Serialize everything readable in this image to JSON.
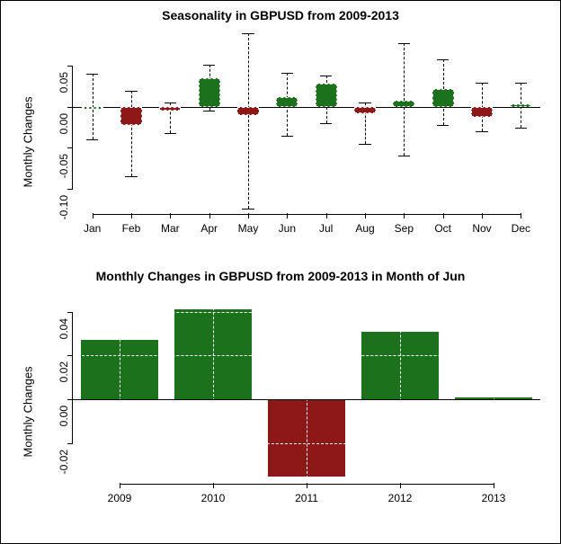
{
  "top_chart": {
    "type": "boxplot",
    "title": "Seasonality in GBPUSD from 2009-2013",
    "title_fontsize": 14,
    "ylabel": "Monthly Changes",
    "label_fontsize": 13,
    "categories": [
      "Jan",
      "Feb",
      "Mar",
      "Apr",
      "May",
      "Jun",
      "Jul",
      "Aug",
      "Sep",
      "Oct",
      "Nov",
      "Dec"
    ],
    "ylim": [
      -0.13,
      0.09
    ],
    "yticks": [
      -0.1,
      -0.05,
      0.0,
      0.05
    ],
    "ytick_labels": [
      "-0.10",
      "-0.05",
      "0.00",
      "0.05"
    ],
    "background_color": "#ffffff",
    "positive_color": "#1c721c",
    "negative_color": "#8c1818",
    "whisker_color": "#000000",
    "boxes": [
      {
        "open": 0.0,
        "close": 0.0,
        "low": -0.04,
        "high": 0.04,
        "color": "#1c721c"
      },
      {
        "open": 0.0,
        "close": -0.022,
        "low": -0.085,
        "high": 0.02,
        "color": "#8c1818"
      },
      {
        "open": 0.0,
        "close": -0.005,
        "low": -0.032,
        "high": 0.005,
        "color": "#8c1818"
      },
      {
        "open": 0.0,
        "close": 0.035,
        "low": -0.005,
        "high": 0.052,
        "color": "#1c721c"
      },
      {
        "open": 0.0,
        "close": -0.01,
        "low": -0.125,
        "high": 0.09,
        "color": "#8c1818"
      },
      {
        "open": 0.0,
        "close": 0.012,
        "low": -0.035,
        "high": 0.042,
        "color": "#1c721c"
      },
      {
        "open": 0.0,
        "close": 0.028,
        "low": -0.02,
        "high": 0.038,
        "color": "#1c721c"
      },
      {
        "open": 0.0,
        "close": -0.008,
        "low": -0.045,
        "high": 0.005,
        "color": "#8c1818"
      },
      {
        "open": 0.0,
        "close": 0.008,
        "low": -0.06,
        "high": 0.078,
        "color": "#1c721c"
      },
      {
        "open": 0.0,
        "close": 0.022,
        "low": -0.022,
        "high": 0.058,
        "color": "#1c721c"
      },
      {
        "open": 0.0,
        "close": -0.012,
        "low": -0.03,
        "high": 0.03,
        "color": "#8c1818"
      },
      {
        "open": 0.0,
        "close": 0.003,
        "low": -0.025,
        "high": 0.03,
        "color": "#1c721c"
      }
    ]
  },
  "bottom_chart": {
    "type": "bar",
    "title": "Monthly Changes in GBPUSD from 2009-2013 in Month of Jun",
    "title_fontsize": 14,
    "ylabel": "Monthly Changes",
    "label_fontsize": 13,
    "categories": [
      "2009",
      "2010",
      "2011",
      "2012",
      "2013"
    ],
    "ylim": [
      -0.038,
      0.048
    ],
    "yticks": [
      -0.02,
      0.0,
      0.02,
      0.04
    ],
    "ytick_labels": [
      "-0.02",
      "0.00",
      "0.02",
      "0.04"
    ],
    "background_color": "#ffffff",
    "positive_color": "#1c721c",
    "negative_color": "#8c1818",
    "grid_color": "#ffffff",
    "bars": [
      {
        "value": 0.027,
        "color": "#1c721c"
      },
      {
        "value": 0.041,
        "color": "#1c721c"
      },
      {
        "value": -0.035,
        "color": "#8c1818"
      },
      {
        "value": 0.031,
        "color": "#1c721c"
      },
      {
        "value": 0.001,
        "color": "#1c721c"
      }
    ]
  }
}
